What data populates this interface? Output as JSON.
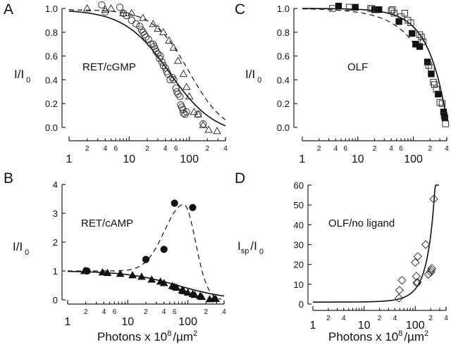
{
  "figure": {
    "xlabel": "Photons x 10",
    "xlabel_sup": "8",
    "xlabel_unit": "/µm",
    "xlabel_unit_sup": "2"
  },
  "chart_data": [
    {
      "id": "A",
      "panel_letter": "A",
      "type": "scatter",
      "title": "RET/cGMP",
      "ylabel": "I/I",
      "ylabel_sub": "0",
      "xlabel": "",
      "xscale": "log",
      "xlim": [
        1,
        400
      ],
      "ylim": [
        0.0,
        1.0
      ],
      "yticks": [
        0.0,
        0.2,
        0.4,
        0.6,
        0.8,
        1.0
      ],
      "ytick_labels": [
        "0.0",
        "0.2",
        "0.4",
        "0.6",
        "0.8",
        "1.0"
      ],
      "xtick_decade_labels": [
        "1",
        "10",
        "100"
      ],
      "xtick_minor_labels": [
        "2",
        "4",
        "6",
        "2",
        "4",
        "6",
        "2",
        "4"
      ],
      "grid": false,
      "series": [
        {
          "name": "open triangles",
          "marker": "triangle-open",
          "x": [
            2,
            4,
            5,
            8,
            11,
            17,
            25,
            30,
            37,
            46,
            55,
            65,
            80,
            90,
            100,
            120,
            140,
            170,
            210,
            290
          ],
          "y": [
            1.0,
            0.99,
            1.0,
            0.96,
            0.96,
            0.92,
            0.87,
            0.83,
            0.8,
            0.73,
            0.67,
            0.56,
            0.45,
            0.34,
            0.26,
            0.13,
            0.11,
            0.02,
            -0.02,
            -0.03
          ]
        },
        {
          "name": "open circles",
          "marker": "circle-open",
          "x": [
            3.5,
            4,
            7,
            8,
            9,
            11,
            13,
            15,
            16,
            17,
            18,
            19,
            21,
            23,
            25,
            26,
            27,
            28,
            30,
            32,
            33,
            35,
            37,
            40,
            42,
            44,
            48,
            52,
            55,
            60,
            62,
            65,
            70,
            72,
            75,
            78,
            80,
            85,
            90,
            140,
            170
          ],
          "y": [
            1.03,
            0.97,
            1.01,
            0.96,
            0.94,
            0.9,
            0.87,
            0.85,
            0.82,
            0.8,
            0.78,
            0.76,
            0.74,
            0.7,
            0.7,
            0.68,
            0.66,
            0.64,
            0.62,
            0.58,
            0.6,
            0.55,
            0.52,
            0.5,
            0.47,
            0.45,
            0.4,
            0.42,
            0.4,
            0.33,
            0.3,
            0.28,
            0.26,
            0.19,
            0.17,
            0.15,
            0.12,
            0.11,
            0.13,
            0.11,
            0.03
          ]
        }
      ],
      "fits": [
        {
          "name": "solid fit",
          "style": "solid",
          "half_point": 45,
          "hill": 1.25
        },
        {
          "name": "dashed fit",
          "style": "dashed",
          "half_point": 95,
          "hill": 1.5
        }
      ]
    },
    {
      "id": "B",
      "panel_letter": "B",
      "type": "scatter",
      "title": "RET/cAMP",
      "ylabel": "I/I",
      "ylabel_sub": "0",
      "xlabel": "Photons x 10^8/µm^2",
      "xscale": "log",
      "xlim": [
        1,
        400
      ],
      "ylim": [
        0,
        4
      ],
      "yticks": [
        0,
        1,
        2,
        3,
        4
      ],
      "ytick_labels": [
        "0",
        "1",
        "2",
        "3",
        "4"
      ],
      "xtick_decade_labels": [
        "1",
        "10",
        "100"
      ],
      "xtick_minor_labels": [
        "2",
        "4",
        "6",
        "2",
        "4",
        "6",
        "2",
        "4"
      ],
      "grid": false,
      "series": [
        {
          "name": "filled circles",
          "marker": "circle-filled",
          "x": [
            2.1,
            20,
            40,
            60,
            120
          ],
          "y": [
            1.0,
            1.4,
            1.75,
            3.35,
            3.2
          ]
        },
        {
          "name": "filled triangles",
          "marker": "triangle-filled",
          "x": [
            1.9,
            2.0,
            3.8,
            4.6,
            7.5,
            12,
            17,
            25,
            35,
            40,
            55,
            60,
            65,
            80,
            85,
            100,
            120,
            130,
            160,
            170,
            230,
            270,
            290
          ],
          "y": [
            1.0,
            1.0,
            0.95,
            0.93,
            0.9,
            0.85,
            0.8,
            0.7,
            0.63,
            0.58,
            0.48,
            0.45,
            0.42,
            0.33,
            0.3,
            0.25,
            0.2,
            0.17,
            0.13,
            0.1,
            0.02,
            0.03,
            0.03
          ]
        }
      ],
      "fits": [
        {
          "name": "solid fit",
          "style": "solid"
        },
        {
          "name": "dashed fit",
          "style": "dashed",
          "peak_x": 85,
          "peak_y": 3.07
        }
      ]
    },
    {
      "id": "C",
      "panel_letter": "C",
      "type": "scatter",
      "title": "OLF",
      "ylabel": "I/I",
      "ylabel_sub": "0",
      "xlabel": "",
      "xscale": "log",
      "xlim": [
        1,
        400
      ],
      "ylim": [
        0.0,
        1.0
      ],
      "yticks": [
        0.0,
        0.2,
        0.4,
        0.6,
        0.8,
        1.0
      ],
      "ytick_labels": [
        "0.0",
        "0.2",
        "0.4",
        "0.6",
        "0.8",
        "1.0"
      ],
      "xtick_decade_labels": [
        "1",
        "10",
        "100"
      ],
      "xtick_minor_labels": [
        "2",
        "4",
        "6",
        "2",
        "4",
        "6",
        "2",
        "4"
      ],
      "grid": false,
      "series": [
        {
          "name": "filled squares",
          "marker": "square-filled",
          "x": [
            4.5,
            9,
            20,
            24,
            55,
            95,
            110,
            130,
            180,
            210,
            280,
            350,
            370
          ],
          "y": [
            1.02,
            1.01,
            0.99,
            0.99,
            0.89,
            0.79,
            0.7,
            0.68,
            0.55,
            0.45,
            0.28,
            0.13,
            0.08
          ]
        },
        {
          "name": "open squares",
          "marker": "square-open",
          "x": [
            3.5,
            7,
            17,
            18,
            40,
            42,
            45,
            60,
            70,
            80,
            90,
            130,
            140,
            150,
            190,
            210,
            230,
            240,
            260,
            300,
            330,
            360,
            380
          ],
          "y": [
            1.0,
            1.01,
            1.0,
            1.0,
            0.98,
            0.99,
            0.96,
            0.93,
            0.96,
            0.9,
            0.88,
            0.78,
            0.76,
            0.72,
            0.52,
            0.5,
            0.38,
            0.36,
            0.32,
            0.21,
            0.2,
            0.1,
            0.03
          ]
        }
      ],
      "fits": [
        {
          "name": "solid fit",
          "style": "solid"
        },
        {
          "name": "dashed fit",
          "style": "dashed"
        }
      ]
    },
    {
      "id": "D",
      "panel_letter": "D",
      "type": "scatter",
      "title": "OLF/no ligand",
      "ylabel": "I",
      "ylabel_sub": "sp",
      "ylabel_rest": "/I",
      "ylabel_rest_sub": "0",
      "xlabel": "Photons x 10^8/µm^2",
      "xscale": "log",
      "xlim": [
        1,
        400
      ],
      "ylim": [
        0,
        60
      ],
      "yticks": [
        0,
        10,
        20,
        30,
        40,
        50,
        60
      ],
      "ytick_labels": [
        "0",
        "10",
        "20",
        "30",
        "40",
        "50",
        "60"
      ],
      "xtick_decade_labels": [
        "1",
        "10",
        "100"
      ],
      "xtick_minor_labels": [
        "2",
        "4",
        "2",
        "4",
        "2",
        "4"
      ],
      "grid": false,
      "series": [
        {
          "name": "open diamonds",
          "marker": "diamond-open",
          "x": [
            48,
            49,
            55,
            100,
            105,
            108,
            110,
            112,
            160,
            180,
            200,
            205,
            210,
            230
          ],
          "y": [
            3,
            7,
            12,
            21,
            14,
            10.5,
            11,
            24,
            30,
            15,
            16,
            17,
            18,
            53
          ]
        }
      ],
      "fits": [
        {
          "name": "solid fit",
          "style": "solid",
          "baseline": 1
        }
      ]
    }
  ]
}
